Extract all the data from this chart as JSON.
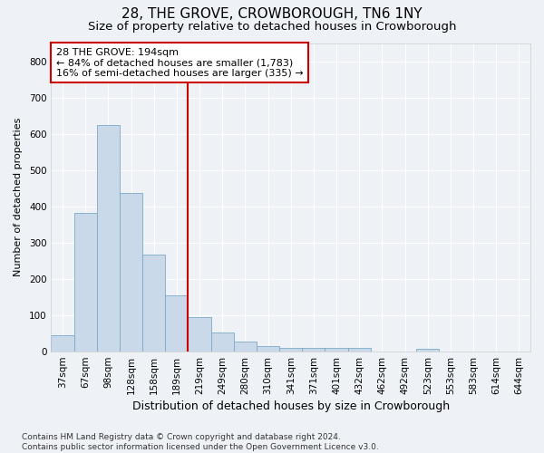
{
  "title": "28, THE GROVE, CROWBOROUGH, TN6 1NY",
  "subtitle": "Size of property relative to detached houses in Crowborough",
  "xlabel": "Distribution of detached houses by size in Crowborough",
  "ylabel": "Number of detached properties",
  "categories": [
    "37sqm",
    "67sqm",
    "98sqm",
    "128sqm",
    "158sqm",
    "189sqm",
    "219sqm",
    "249sqm",
    "280sqm",
    "310sqm",
    "341sqm",
    "371sqm",
    "401sqm",
    "432sqm",
    "462sqm",
    "492sqm",
    "523sqm",
    "553sqm",
    "583sqm",
    "614sqm",
    "644sqm"
  ],
  "values": [
    45,
    382,
    625,
    437,
    268,
    155,
    95,
    52,
    28,
    15,
    11,
    11,
    11,
    9,
    0,
    0,
    8,
    0,
    0,
    0,
    0
  ],
  "bar_color": "#c9d9ea",
  "bar_edge_color": "#7aaac8",
  "vline_x_index": 5,
  "vline_color": "#cc0000",
  "annotation_line1": "28 THE GROVE: 194sqm",
  "annotation_line2": "← 84% of detached houses are smaller (1,783)",
  "annotation_line3": "16% of semi-detached houses are larger (335) →",
  "annotation_box_color": "#ffffff",
  "annotation_box_edge_color": "#cc0000",
  "ylim": [
    0,
    850
  ],
  "yticks": [
    0,
    100,
    200,
    300,
    400,
    500,
    600,
    700,
    800
  ],
  "footer": "Contains HM Land Registry data © Crown copyright and database right 2024.\nContains public sector information licensed under the Open Government Licence v3.0.",
  "background_color": "#eef2f7",
  "plot_bg_color": "#eef2f7",
  "grid_color": "#ffffff",
  "title_fontsize": 11,
  "subtitle_fontsize": 9.5,
  "xlabel_fontsize": 9,
  "ylabel_fontsize": 8,
  "tick_fontsize": 7.5,
  "annotation_fontsize": 8,
  "footer_fontsize": 6.5
}
